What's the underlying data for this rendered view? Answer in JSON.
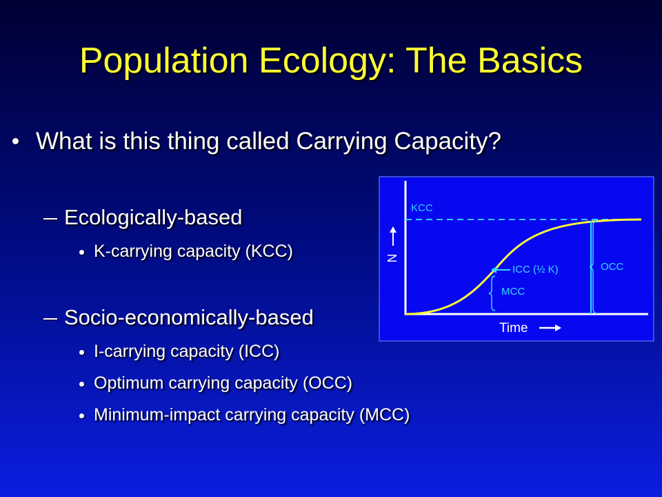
{
  "header": {
    "title": "Population Ecology: The Basics"
  },
  "bullets": [
    {
      "text": "What is this thing called Carrying Capacity?",
      "groups": [
        {
          "heading": "Ecologically-based",
          "items": [
            "K-carrying capacity (KCC)"
          ]
        },
        {
          "heading": "Socio-economically-based",
          "items": [
            "I-carrying capacity (ICC)",
            "Optimum carrying capacity (OCC)",
            "Minimum-impact carrying capacity (MCC)"
          ]
        }
      ]
    }
  ],
  "diagram": {
    "labels": {
      "kcc": "KCC",
      "y_axis": "N",
      "icc": "ICC (½ K)",
      "mcc": "MCC",
      "occ": "OCC",
      "x_axis": "Time"
    }
  }
}
